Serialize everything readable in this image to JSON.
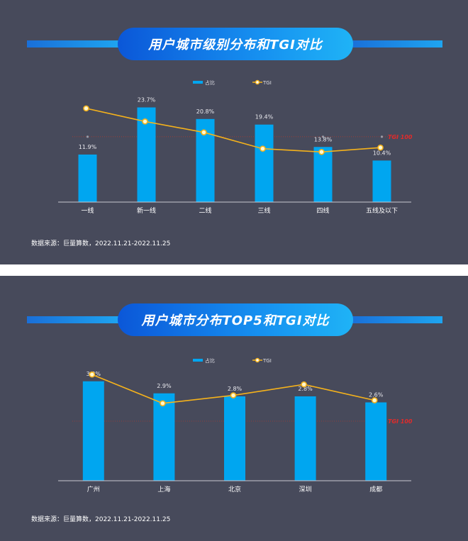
{
  "charts": [
    {
      "title": "用户城市级别分布和TGI对比",
      "source": "数据来源：巨量算数，2022.11.21-2022.11.25",
      "legend": {
        "bar": "占比",
        "line": "TGI"
      },
      "ref_label": "TGI 100",
      "colors": {
        "bar": "#00a6f0",
        "line": "#f5b21b",
        "ref": "#c0392b"
      }
    },
    {
      "title": "用户城市分布TOP5和TGI对比",
      "source": "数据来源：巨量算数，2022.11.21-2022.11.25",
      "legend": {
        "bar": "占比",
        "line": "TGI"
      },
      "ref_label": "TGI 100",
      "colors": {
        "bar": "#00a6f0",
        "line": "#f5b21b",
        "ref": "#c0392b"
      }
    }
  ],
  "chart_data": [
    {
      "type": "bar",
      "title": "用户城市级别分布和TGI对比",
      "categories": [
        "一线",
        "新一线",
        "二线",
        "三线",
        "四线",
        "五线及以下"
      ],
      "series": [
        {
          "name": "占比",
          "type": "bar",
          "values": [
            11.9,
            23.7,
            20.8,
            19.4,
            13.8,
            10.4
          ],
          "labels": [
            "11.9%",
            "23.7%",
            "20.8%",
            "19.4%",
            "13.8%",
            "10.4%"
          ]
        },
        {
          "name": "TGI",
          "type": "line",
          "values": [
            126,
            114,
            104,
            89,
            86,
            90
          ]
        }
      ],
      "reference_line": {
        "label": "TGI 100",
        "value": 100
      },
      "legend_position": "top-center",
      "bar_ylim": [
        0,
        30
      ],
      "tgi_ylim": [
        40,
        150
      ]
    },
    {
      "type": "bar",
      "title": "用户城市分布TOP5和TGI对比",
      "categories": [
        "广州",
        "上海",
        "北京",
        "深圳",
        "成都"
      ],
      "series": [
        {
          "name": "占比",
          "type": "bar",
          "values": [
            3.3,
            2.9,
            2.8,
            2.8,
            2.6
          ],
          "labels": [
            "3.3%",
            "2.9%",
            "2.8%",
            "2.8%",
            "2.6%"
          ]
        },
        {
          "name": "TGI",
          "type": "line",
          "values": [
            147,
            118,
            126,
            137,
            121
          ]
        }
      ],
      "reference_line": {
        "label": "TGI 100",
        "value": 100
      },
      "legend_position": "top-center",
      "bar_ylim": [
        0,
        4
      ],
      "tgi_ylim": [
        40,
        160
      ]
    }
  ]
}
